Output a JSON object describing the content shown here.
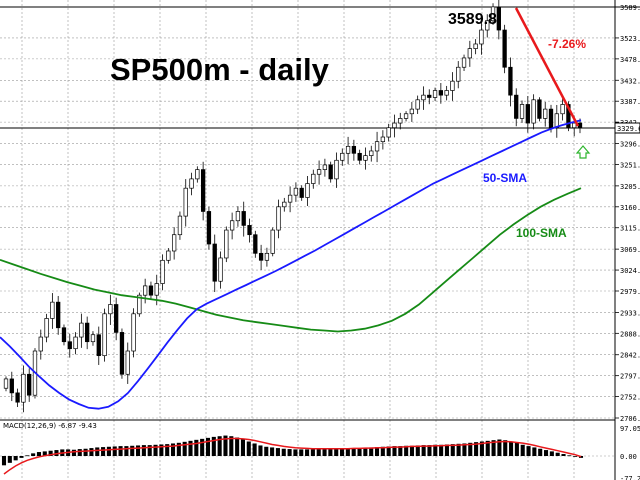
{
  "chart_data": {
    "type": "candlestick",
    "title": "SP500m - daily",
    "price_axis": {
      "ylim": [
        2696,
        3600
      ],
      "tick_labels": [
        "3589.5",
        "3523.0",
        "3478.0",
        "3432.0",
        "3387.0",
        "3342.0",
        "3296.0",
        "3251.0",
        "3205.0",
        "3160.0",
        "3115.0",
        "3069.0",
        "3024.0",
        "2979.0",
        "2933.0",
        "2888.0",
        "2842.0",
        "2797.0",
        "2752.0",
        "2706.0"
      ],
      "tick_values": [
        3589.5,
        3523,
        3478,
        3432,
        3387,
        3342,
        3296,
        3251,
        3205,
        3160,
        3115,
        3069,
        3024,
        2979,
        2933,
        2888,
        2842,
        2797,
        2752,
        2706
      ],
      "current_price_label": "3329.6",
      "current_price": 3329.6
    },
    "close_series": [
      2790,
      2760,
      2740,
      2800,
      2755,
      2850,
      2880,
      2920,
      2955,
      2900,
      2870,
      2855,
      2880,
      2910,
      2870,
      2885,
      2840,
      2930,
      2950,
      2890,
      2800,
      2850,
      2930,
      2970,
      2990,
      2970,
      2995,
      3045,
      3065,
      3100,
      3140,
      3200,
      3220,
      3240,
      3150,
      3080,
      3000,
      3050,
      3110,
      3130,
      3150,
      3120,
      3100,
      3060,
      3045,
      3060,
      3110,
      3160,
      3170,
      3185,
      3200,
      3180,
      3210,
      3230,
      3240,
      3250,
      3220,
      3260,
      3275,
      3290,
      3275,
      3260,
      3270,
      3280,
      3300,
      3310,
      3330,
      3340,
      3350,
      3360,
      3370,
      3390,
      3400,
      3395,
      3410,
      3400,
      3410,
      3430,
      3460,
      3480,
      3500,
      3510,
      3540,
      3560,
      3589.8,
      3540,
      3460,
      3400,
      3350,
      3380,
      3340,
      3390,
      3350,
      3370,
      3330,
      3360,
      3380,
      3330,
      3340,
      3329.6
    ],
    "series": [
      {
        "name": "50-SMA",
        "color": "#1a1aff",
        "values": [
          2880,
          2860,
          2838,
          2815,
          2795,
          2776,
          2760,
          2746,
          2736,
          2728,
          2726,
          2730,
          2742,
          2760,
          2785,
          2812,
          2840,
          2868,
          2895,
          2920,
          2940,
          2952,
          2962,
          2972,
          2982,
          2992,
          3002,
          3012,
          3022,
          3033,
          3044,
          3055,
          3066,
          3078,
          3090,
          3102,
          3114,
          3126,
          3138,
          3150,
          3162,
          3174,
          3186,
          3198,
          3210,
          3220,
          3230,
          3240,
          3250,
          3260,
          3270,
          3280,
          3290,
          3300,
          3310,
          3320,
          3328,
          3335,
          3341,
          3346
        ]
      },
      {
        "name": "100-SMA",
        "color": "#168b16",
        "values": [
          3046,
          3036,
          3026,
          3016,
          3007,
          2998,
          2990,
          2982,
          2976,
          2970,
          2966,
          2962,
          2958,
          2952,
          2944,
          2936,
          2928,
          2922,
          2916,
          2912,
          2908,
          2904,
          2900,
          2896,
          2894,
          2892,
          2894,
          2898,
          2905,
          2915,
          2930,
          2950,
          2975,
          3000,
          3025,
          3050,
          3075,
          3100,
          3122,
          3142,
          3160,
          3175,
          3188,
          3200
        ]
      }
    ],
    "annotations": {
      "peak_label": "3589.8",
      "pct_label": "-7.26%",
      "sma50_label": "50-SMA",
      "sma100_label": "100-SMA"
    },
    "macd": {
      "label": "MACD(12,26,9) -6.87 -9.43",
      "tick_labels": [
        "97.05",
        "0.00",
        "-77.29"
      ],
      "tick_values": [
        97.05,
        0,
        -77.29
      ],
      "ylim": [
        -77.29,
        97.05
      ],
      "histogram": [
        -30,
        -22,
        -14,
        -6,
        2,
        8,
        12,
        14,
        16,
        18,
        20,
        20,
        19,
        21,
        22,
        24,
        26,
        27,
        28,
        29,
        30,
        30,
        31,
        32,
        33,
        33,
        34,
        35,
        36,
        38,
        40,
        43,
        46,
        49,
        52,
        55,
        58,
        60,
        62,
        60,
        56,
        50,
        44,
        38,
        32,
        28,
        26,
        24,
        22,
        21,
        20,
        20,
        20,
        20,
        21,
        21,
        22,
        22,
        23,
        23,
        24,
        24,
        25,
        26,
        27,
        28,
        29,
        30,
        30,
        31,
        31,
        32,
        33,
        33,
        34,
        34,
        35,
        36,
        37,
        38,
        40,
        42,
        44,
        46,
        48,
        50,
        48,
        44,
        40,
        34,
        30,
        26,
        22,
        18,
        14,
        10,
        6,
        2,
        -2,
        -6
      ],
      "signal": [
        -58,
        -44,
        -32,
        -22,
        -14,
        -8,
        -3,
        1,
        4,
        7,
        9,
        11,
        13,
        14,
        15,
        16,
        17,
        18,
        19,
        20,
        21,
        22,
        23,
        24,
        25,
        26,
        27,
        28,
        29,
        30,
        32,
        34,
        36,
        38,
        41,
        44,
        47,
        50,
        52,
        53,
        53,
        52,
        50,
        47,
        43,
        39,
        35,
        32,
        29,
        27,
        25,
        24,
        23,
        22,
        22,
        22,
        22,
        22,
        22,
        22,
        23,
        23,
        24,
        24,
        25,
        25,
        26,
        27,
        27,
        28,
        29,
        29,
        30,
        30,
        31,
        31,
        32,
        32,
        33,
        34,
        35,
        36,
        38,
        40,
        42,
        43,
        44,
        43,
        41,
        39,
        36,
        32,
        28,
        24,
        20,
        16,
        12,
        8,
        4,
        -2
      ]
    },
    "colors": {
      "bull_candle": "#ffffff",
      "bear_candle": "#000000",
      "candle_outline": "#000000",
      "trend_line": "#e8191c",
      "grid": "#9a9a9a",
      "macd_hist": "#000000",
      "macd_signal": "#e8191c",
      "green_arrow": "#2db52d"
    },
    "grid": true
  }
}
